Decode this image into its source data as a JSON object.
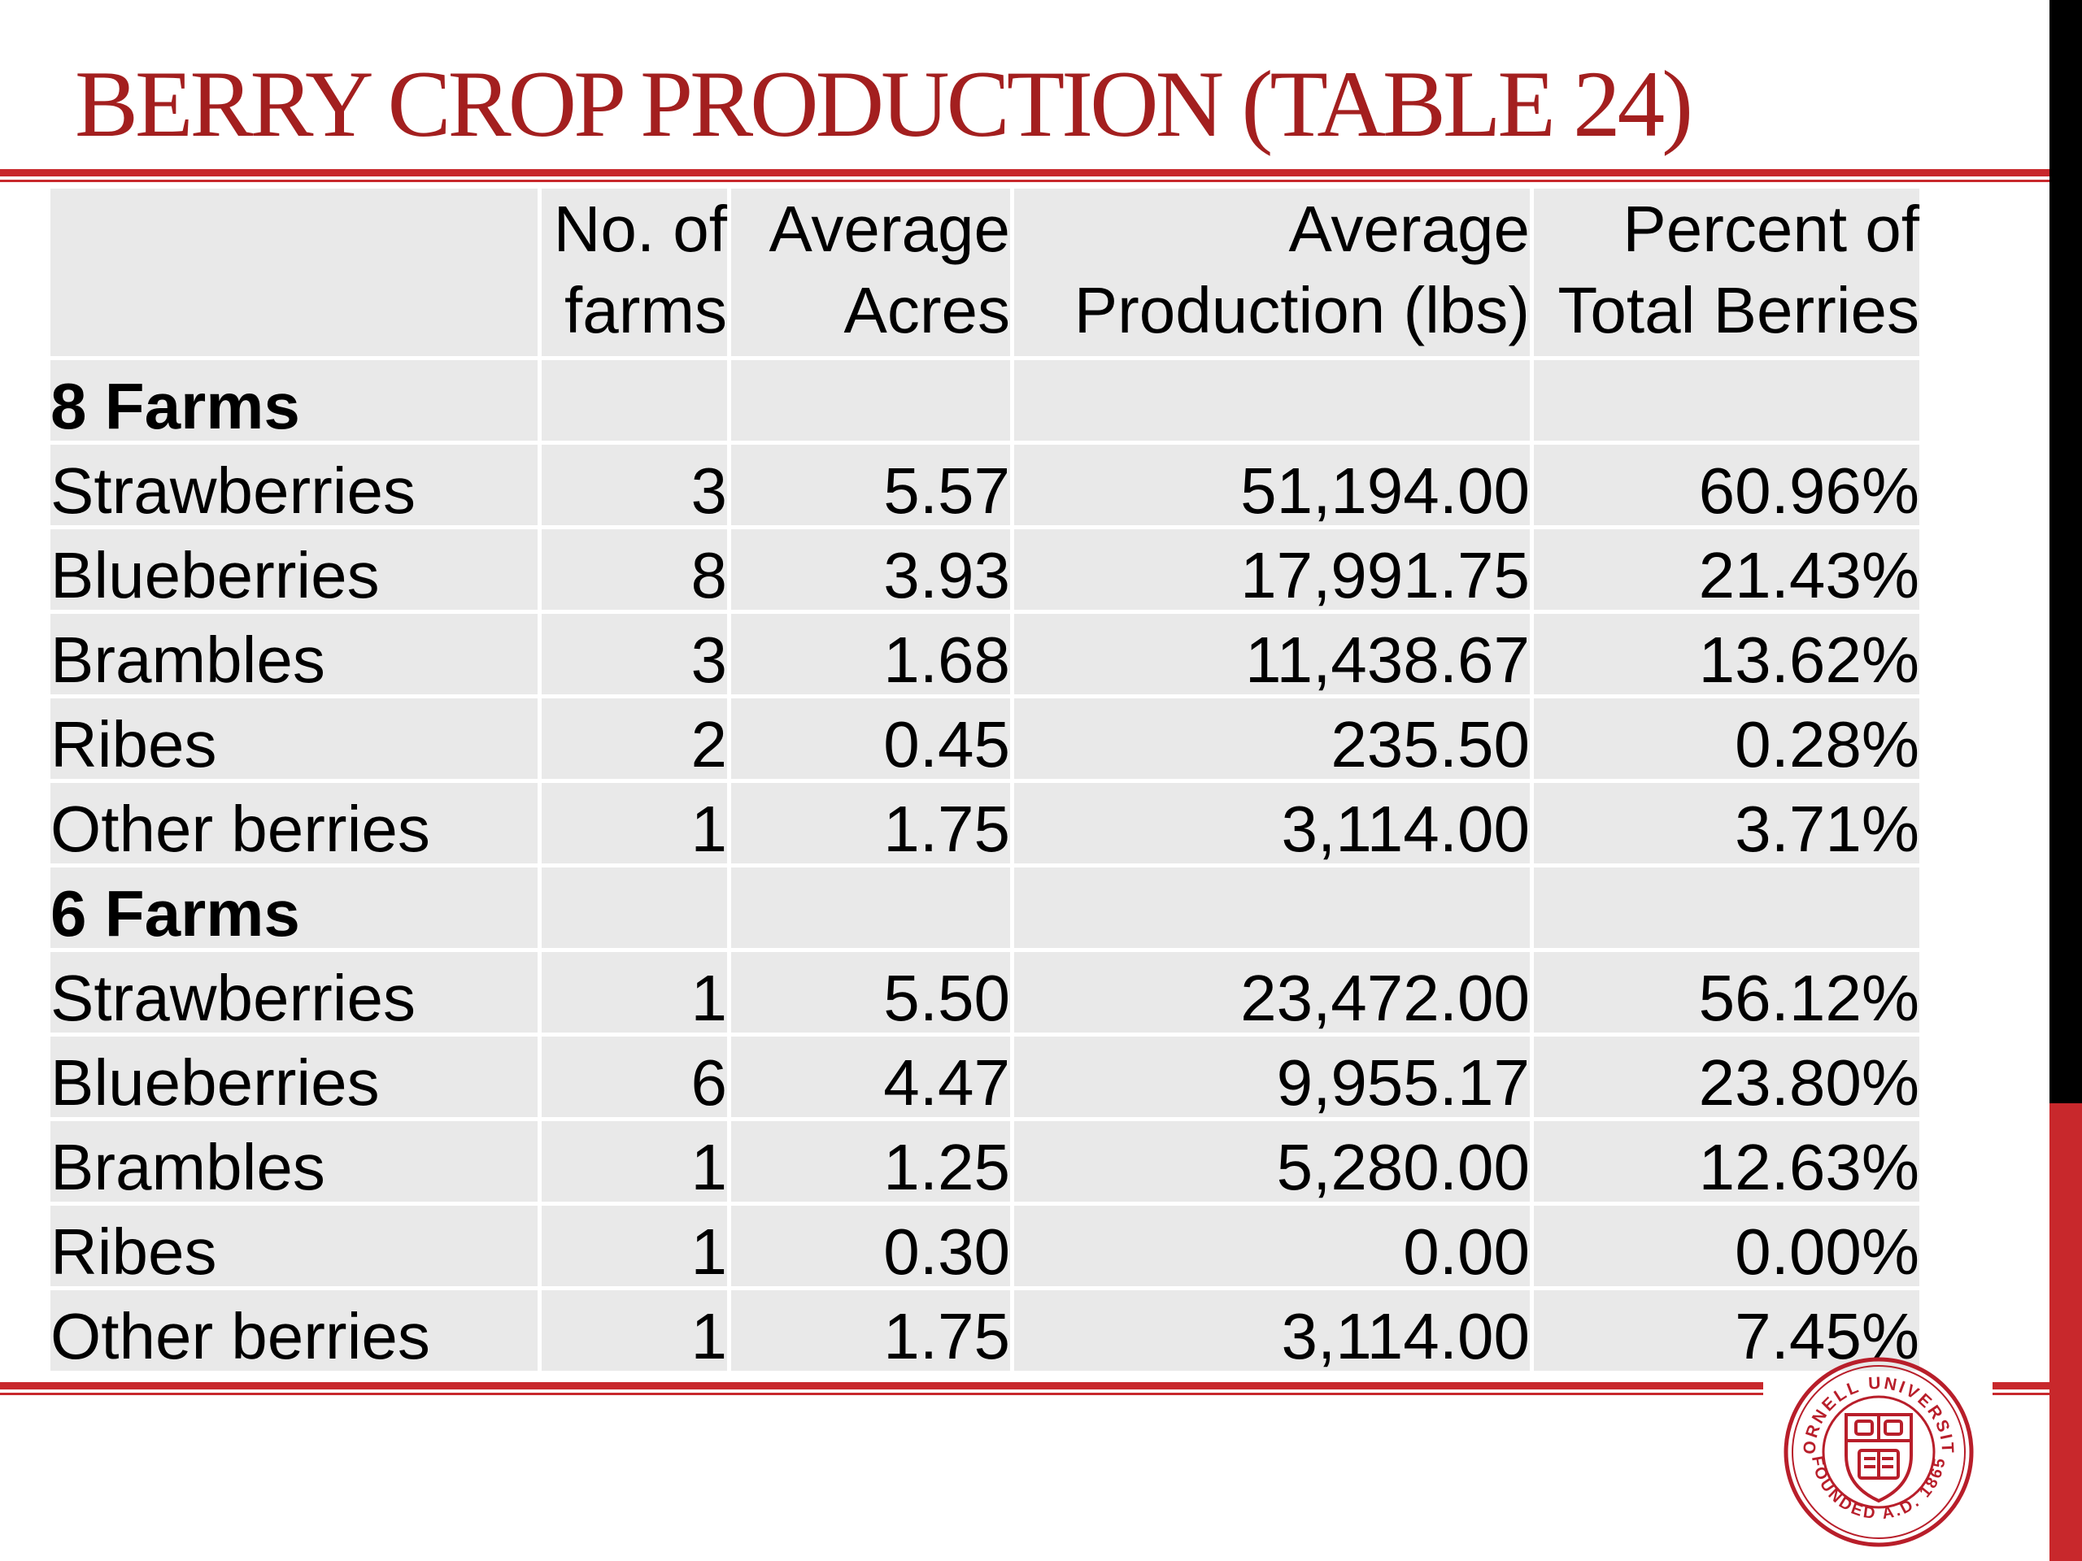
{
  "title": "BERRY CROP PRODUCTION (TABLE 24)",
  "colors": {
    "title": "#a31f1f",
    "rule": "#c8282c",
    "cell": "#e9e9e9",
    "sidebar": "#000000"
  },
  "table": {
    "headers": [
      {
        "line1": "",
        "line2": ""
      },
      {
        "line1": "No. of",
        "line2": "farms"
      },
      {
        "line1": "Average",
        "line2": "Acres"
      },
      {
        "line1": "Average",
        "line2": "Production (lbs)"
      },
      {
        "line1": "Percent of",
        "line2": "Total Berries"
      }
    ],
    "groups": [
      {
        "label": "8 Farms",
        "rows": [
          {
            "crop": "Strawberries",
            "farms": "3",
            "acres": "5.57",
            "production": "51,194.00",
            "percent": "60.96%"
          },
          {
            "crop": "Blueberries",
            "farms": "8",
            "acres": "3.93",
            "production": "17,991.75",
            "percent": "21.43%"
          },
          {
            "crop": "Brambles",
            "farms": "3",
            "acres": "1.68",
            "production": "11,438.67",
            "percent": "13.62%"
          },
          {
            "crop": "Ribes",
            "farms": "2",
            "acres": "0.45",
            "production": "235.50",
            "percent": "0.28%"
          },
          {
            "crop": "Other berries",
            "farms": "1",
            "acres": "1.75",
            "production": "3,114.00",
            "percent": "3.71%"
          }
        ]
      },
      {
        "label": "6 Farms",
        "rows": [
          {
            "crop": "Strawberries",
            "farms": "1",
            "acres": "5.50",
            "production": "23,472.00",
            "percent": "56.12%"
          },
          {
            "crop": "Blueberries",
            "farms": "6",
            "acres": "4.47",
            "production": "9,955.17",
            "percent": "23.80%"
          },
          {
            "crop": "Brambles",
            "farms": "1",
            "acres": "1.25",
            "production": "5,280.00",
            "percent": "12.63%"
          },
          {
            "crop": "Ribes",
            "farms": "1",
            "acres": "0.30",
            "production": "0.00",
            "percent": "0.00%"
          },
          {
            "crop": "Other berries",
            "farms": "1",
            "acres": "1.75",
            "production": "3,114.00",
            "percent": "7.45%"
          }
        ]
      }
    ]
  },
  "seal": {
    "top_text": "CORNELL UNIVERSITY",
    "bottom_text": "FOUNDED A.D. 1865",
    "icon": "cornell-seal-icon"
  }
}
